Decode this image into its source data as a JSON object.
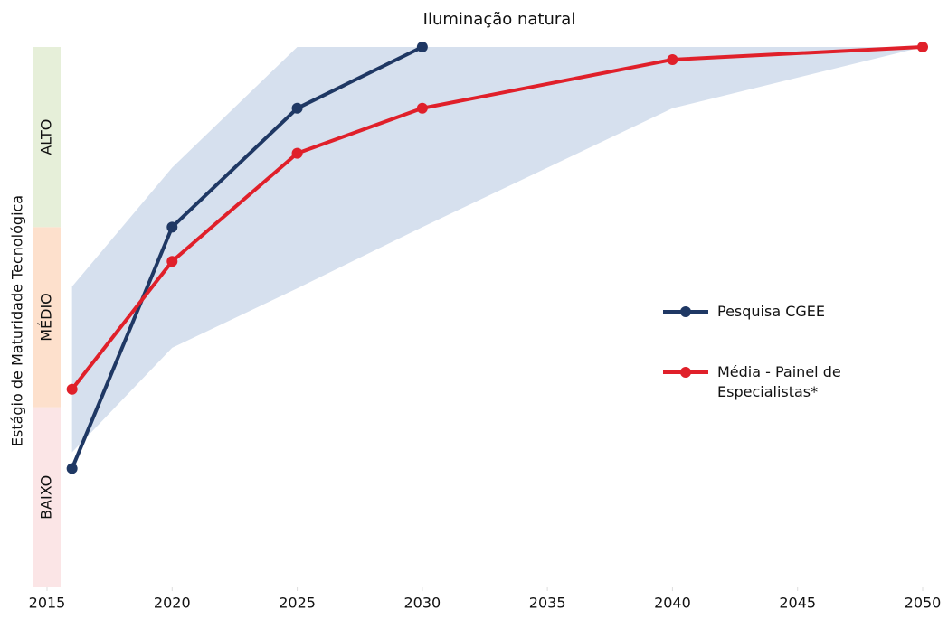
{
  "chart_data": {
    "type": "line",
    "title": "Iluminação natural",
    "ylabel": "Estágio de Maturidade Tecnológica",
    "xlim": [
      2015,
      2050
    ],
    "xticks": [
      2015,
      2020,
      2025,
      2030,
      2035,
      2040,
      2045,
      2050
    ],
    "ylim": [
      0,
      3
    ],
    "bands": [
      {
        "label": "BAIXO",
        "from": 0,
        "to": 1,
        "color": "#fbe5e6"
      },
      {
        "label": "MÉDIO",
        "from": 1,
        "to": 2,
        "color": "#fde0cc"
      },
      {
        "label": "ALTO",
        "from": 2,
        "to": 3,
        "color": "#e6efd9"
      }
    ],
    "range": {
      "color": "#d6e0ee",
      "x": [
        2016,
        2020,
        2025,
        2030,
        2040,
        2050
      ],
      "low": [
        0.75,
        1.33,
        1.66,
        2.0,
        2.66,
        3.0
      ],
      "high": [
        1.67,
        2.33,
        3.0,
        3.0,
        3.0,
        3.0
      ]
    },
    "series": [
      {
        "name": "Pesquisa CGEE",
        "color": "#1f3864",
        "x": [
          2016,
          2020,
          2025,
          2030
        ],
        "values": [
          0.66,
          2.0,
          2.66,
          3.0
        ]
      },
      {
        "name": "Média - Painel de Especialistas*",
        "color": "#e0202a",
        "x": [
          2016,
          2020,
          2025,
          2030,
          2040,
          2050
        ],
        "values": [
          1.1,
          1.81,
          2.41,
          2.66,
          2.93,
          3.0
        ]
      }
    ]
  }
}
